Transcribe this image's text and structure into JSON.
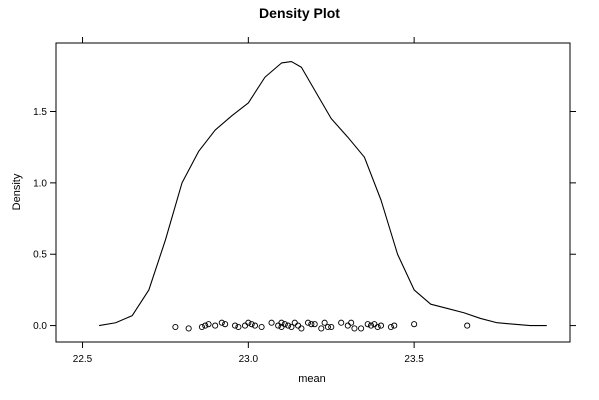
{
  "chart_data": {
    "type": "line",
    "title": "Density Plot",
    "xlabel": "mean",
    "ylabel": "Density",
    "xlim": [
      22.42,
      23.97
    ],
    "ylim": [
      -0.115,
      1.98
    ],
    "x_ticks": [
      22.5,
      23.0,
      23.5
    ],
    "x_tick_labels": [
      "22.5",
      "23.0",
      "23.5"
    ],
    "y_ticks": [
      0.0,
      0.5,
      1.0,
      1.5
    ],
    "y_tick_labels": [
      "0.0",
      "0.5",
      "1.0",
      "1.5"
    ],
    "grid": false,
    "series": [
      {
        "kind": "density-line",
        "x": [
          22.55,
          22.6,
          22.65,
          22.7,
          22.75,
          22.8,
          22.85,
          22.9,
          22.95,
          23.0,
          23.05,
          23.1,
          23.13,
          23.16,
          23.2,
          23.25,
          23.3,
          23.35,
          23.4,
          23.45,
          23.5,
          23.55,
          23.6,
          23.65,
          23.7,
          23.75,
          23.8,
          23.85,
          23.9
        ],
        "y": [
          0.0,
          0.02,
          0.07,
          0.25,
          0.6,
          1.0,
          1.22,
          1.37,
          1.47,
          1.56,
          1.74,
          1.84,
          1.85,
          1.81,
          1.65,
          1.45,
          1.32,
          1.18,
          0.88,
          0.5,
          0.25,
          0.15,
          0.12,
          0.09,
          0.05,
          0.02,
          0.01,
          0.0,
          0.0
        ]
      },
      {
        "kind": "rug-points",
        "x": [
          22.78,
          22.82,
          22.86,
          22.87,
          22.88,
          22.9,
          22.92,
          22.93,
          22.96,
          22.97,
          22.99,
          23.0,
          23.01,
          23.02,
          23.04,
          23.07,
          23.09,
          23.1,
          23.1,
          23.11,
          23.12,
          23.13,
          23.14,
          23.15,
          23.16,
          23.18,
          23.19,
          23.2,
          23.22,
          23.23,
          23.24,
          23.25,
          23.28,
          23.3,
          23.31,
          23.32,
          23.34,
          23.36,
          23.37,
          23.38,
          23.39,
          23.4,
          23.43,
          23.44,
          23.5,
          23.66
        ],
        "y": [
          -0.01,
          -0.02,
          -0.01,
          0.0,
          0.01,
          0.0,
          0.02,
          0.01,
          0.0,
          -0.01,
          0.0,
          0.02,
          0.01,
          0.0,
          -0.01,
          0.02,
          0.0,
          0.02,
          -0.01,
          0.01,
          0.0,
          -0.01,
          0.02,
          0.0,
          -0.02,
          0.02,
          0.01,
          0.01,
          -0.02,
          0.02,
          -0.01,
          -0.01,
          0.02,
          0.0,
          0.02,
          -0.02,
          -0.02,
          0.01,
          0.0,
          0.01,
          -0.01,
          0.0,
          -0.01,
          0.0,
          0.01,
          0.0
        ]
      }
    ]
  }
}
